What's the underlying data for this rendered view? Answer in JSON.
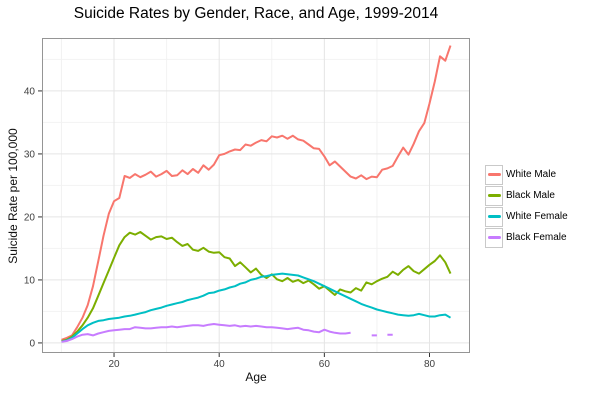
{
  "chart_data": {
    "type": "line",
    "title": "Suicide Rates by Gender, Race, and Age, 1999-2014",
    "xlabel": "Age",
    "ylabel": "Suicide Rate per 100,000",
    "x": [
      10,
      11,
      12,
      13,
      14,
      15,
      16,
      17,
      18,
      19,
      20,
      21,
      22,
      23,
      24,
      25,
      26,
      27,
      28,
      29,
      30,
      31,
      32,
      33,
      34,
      35,
      36,
      37,
      38,
      39,
      40,
      41,
      42,
      43,
      44,
      45,
      46,
      47,
      48,
      49,
      50,
      51,
      52,
      53,
      54,
      55,
      56,
      57,
      58,
      59,
      60,
      61,
      62,
      63,
      64,
      65,
      66,
      67,
      68,
      69,
      70,
      71,
      72,
      73,
      74,
      75,
      76,
      77,
      78,
      79,
      80,
      81,
      82,
      83,
      84
    ],
    "series": [
      {
        "name": "White Male",
        "color": "#F8766D",
        "values": [
          0.5,
          0.8,
          1.2,
          2.5,
          4.0,
          6.0,
          9.0,
          13.0,
          17.0,
          20.5,
          22.5,
          23.0,
          26.5,
          26.2,
          26.8,
          26.3,
          26.7,
          27.2,
          26.4,
          26.8,
          27.3,
          26.5,
          26.6,
          27.4,
          26.8,
          27.6,
          27.0,
          28.2,
          27.5,
          28.3,
          29.8,
          30.0,
          30.4,
          30.7,
          30.6,
          31.5,
          31.3,
          31.8,
          32.2,
          32.0,
          32.8,
          32.6,
          32.9,
          32.4,
          32.9,
          32.3,
          32.1,
          31.5,
          30.9,
          30.8,
          29.6,
          28.2,
          28.8,
          28.0,
          27.2,
          26.4,
          26.1,
          26.6,
          26.0,
          26.4,
          26.3,
          27.5,
          27.7,
          28.1,
          29.6,
          31.0,
          29.9,
          31.6,
          33.6,
          34.9,
          38.0,
          41.5,
          45.5,
          44.8,
          47.2
        ]
      },
      {
        "name": "Black Male",
        "color": "#7CAE00",
        "values": [
          0.3,
          0.5,
          1.0,
          1.8,
          2.8,
          4.0,
          5.5,
          7.5,
          9.5,
          11.5,
          13.5,
          15.5,
          16.8,
          17.5,
          17.2,
          17.6,
          17.0,
          16.4,
          16.8,
          16.9,
          16.5,
          16.7,
          16.0,
          15.4,
          15.7,
          14.8,
          14.6,
          15.1,
          14.5,
          14.3,
          14.4,
          13.6,
          13.4,
          12.2,
          12.8,
          12.0,
          11.2,
          11.8,
          10.8,
          10.3,
          10.9,
          10.1,
          9.8,
          10.3,
          9.7,
          10.0,
          9.5,
          9.9,
          9.3,
          8.6,
          9.0,
          8.3,
          7.6,
          8.5,
          8.2,
          8.0,
          8.7,
          8.3,
          9.6,
          9.3,
          9.8,
          10.2,
          10.5,
          11.3,
          10.8,
          11.6,
          12.2,
          11.4,
          11.0,
          11.7,
          12.4,
          13.0,
          13.9,
          12.8,
          11.0
        ]
      },
      {
        "name": "White Female",
        "color": "#00BFC4",
        "values": [
          0.2,
          0.4,
          0.8,
          1.5,
          2.2,
          2.8,
          3.2,
          3.5,
          3.6,
          3.8,
          3.9,
          4.0,
          4.2,
          4.3,
          4.5,
          4.7,
          4.9,
          5.2,
          5.4,
          5.6,
          5.9,
          6.1,
          6.3,
          6.5,
          6.8,
          7.0,
          7.2,
          7.5,
          7.9,
          8.0,
          8.3,
          8.5,
          8.8,
          9.0,
          9.4,
          9.6,
          10.0,
          10.2,
          10.5,
          10.6,
          10.8,
          10.9,
          11.0,
          10.9,
          10.8,
          10.7,
          10.4,
          10.1,
          9.8,
          9.4,
          9.0,
          8.6,
          8.2,
          7.8,
          7.4,
          7.0,
          6.6,
          6.2,
          5.9,
          5.6,
          5.3,
          5.1,
          4.9,
          4.7,
          4.5,
          4.4,
          4.3,
          4.4,
          4.6,
          4.4,
          4.2,
          4.2,
          4.4,
          4.5,
          4.0
        ]
      },
      {
        "name": "Black Female",
        "color": "#C77CFF",
        "values": [
          0.2,
          0.3,
          0.6,
          1.0,
          1.3,
          1.4,
          1.2,
          1.5,
          1.7,
          1.9,
          2.0,
          2.1,
          2.2,
          2.2,
          2.5,
          2.4,
          2.3,
          2.3,
          2.4,
          2.5,
          2.5,
          2.6,
          2.5,
          2.6,
          2.7,
          2.8,
          2.8,
          2.7,
          2.9,
          3.0,
          2.9,
          2.8,
          2.7,
          2.8,
          2.6,
          2.7,
          2.6,
          2.7,
          2.6,
          2.5,
          2.5,
          2.4,
          2.3,
          2.2,
          2.3,
          2.4,
          2.1,
          2.0,
          1.8,
          1.7,
          2.1,
          1.8,
          1.6,
          1.5,
          1.5,
          1.6,
          null,
          null,
          null,
          1.2,
          1.2,
          null,
          1.3,
          1.3,
          null,
          null,
          null,
          null,
          null,
          null,
          null,
          null,
          null,
          null,
          null
        ]
      }
    ],
    "xlim": [
      6.3,
      87.7
    ],
    "ylim": [
      -1.6,
      48.4
    ],
    "x_ticks": [
      20,
      40,
      60,
      80
    ],
    "y_ticks": [
      0,
      10,
      20,
      30,
      40
    ],
    "x_minor": [
      10,
      30,
      50,
      70
    ],
    "y_minor": [
      5,
      15,
      25,
      35,
      45
    ],
    "grid": true,
    "legend_position": "right",
    "colors": {
      "grid_major": "#e5e5e5",
      "grid_minor": "#f2f2f2",
      "panel_border": "#959595",
      "tick": "#333333",
      "tick_label": "#404040",
      "background": "#ffffff"
    }
  }
}
